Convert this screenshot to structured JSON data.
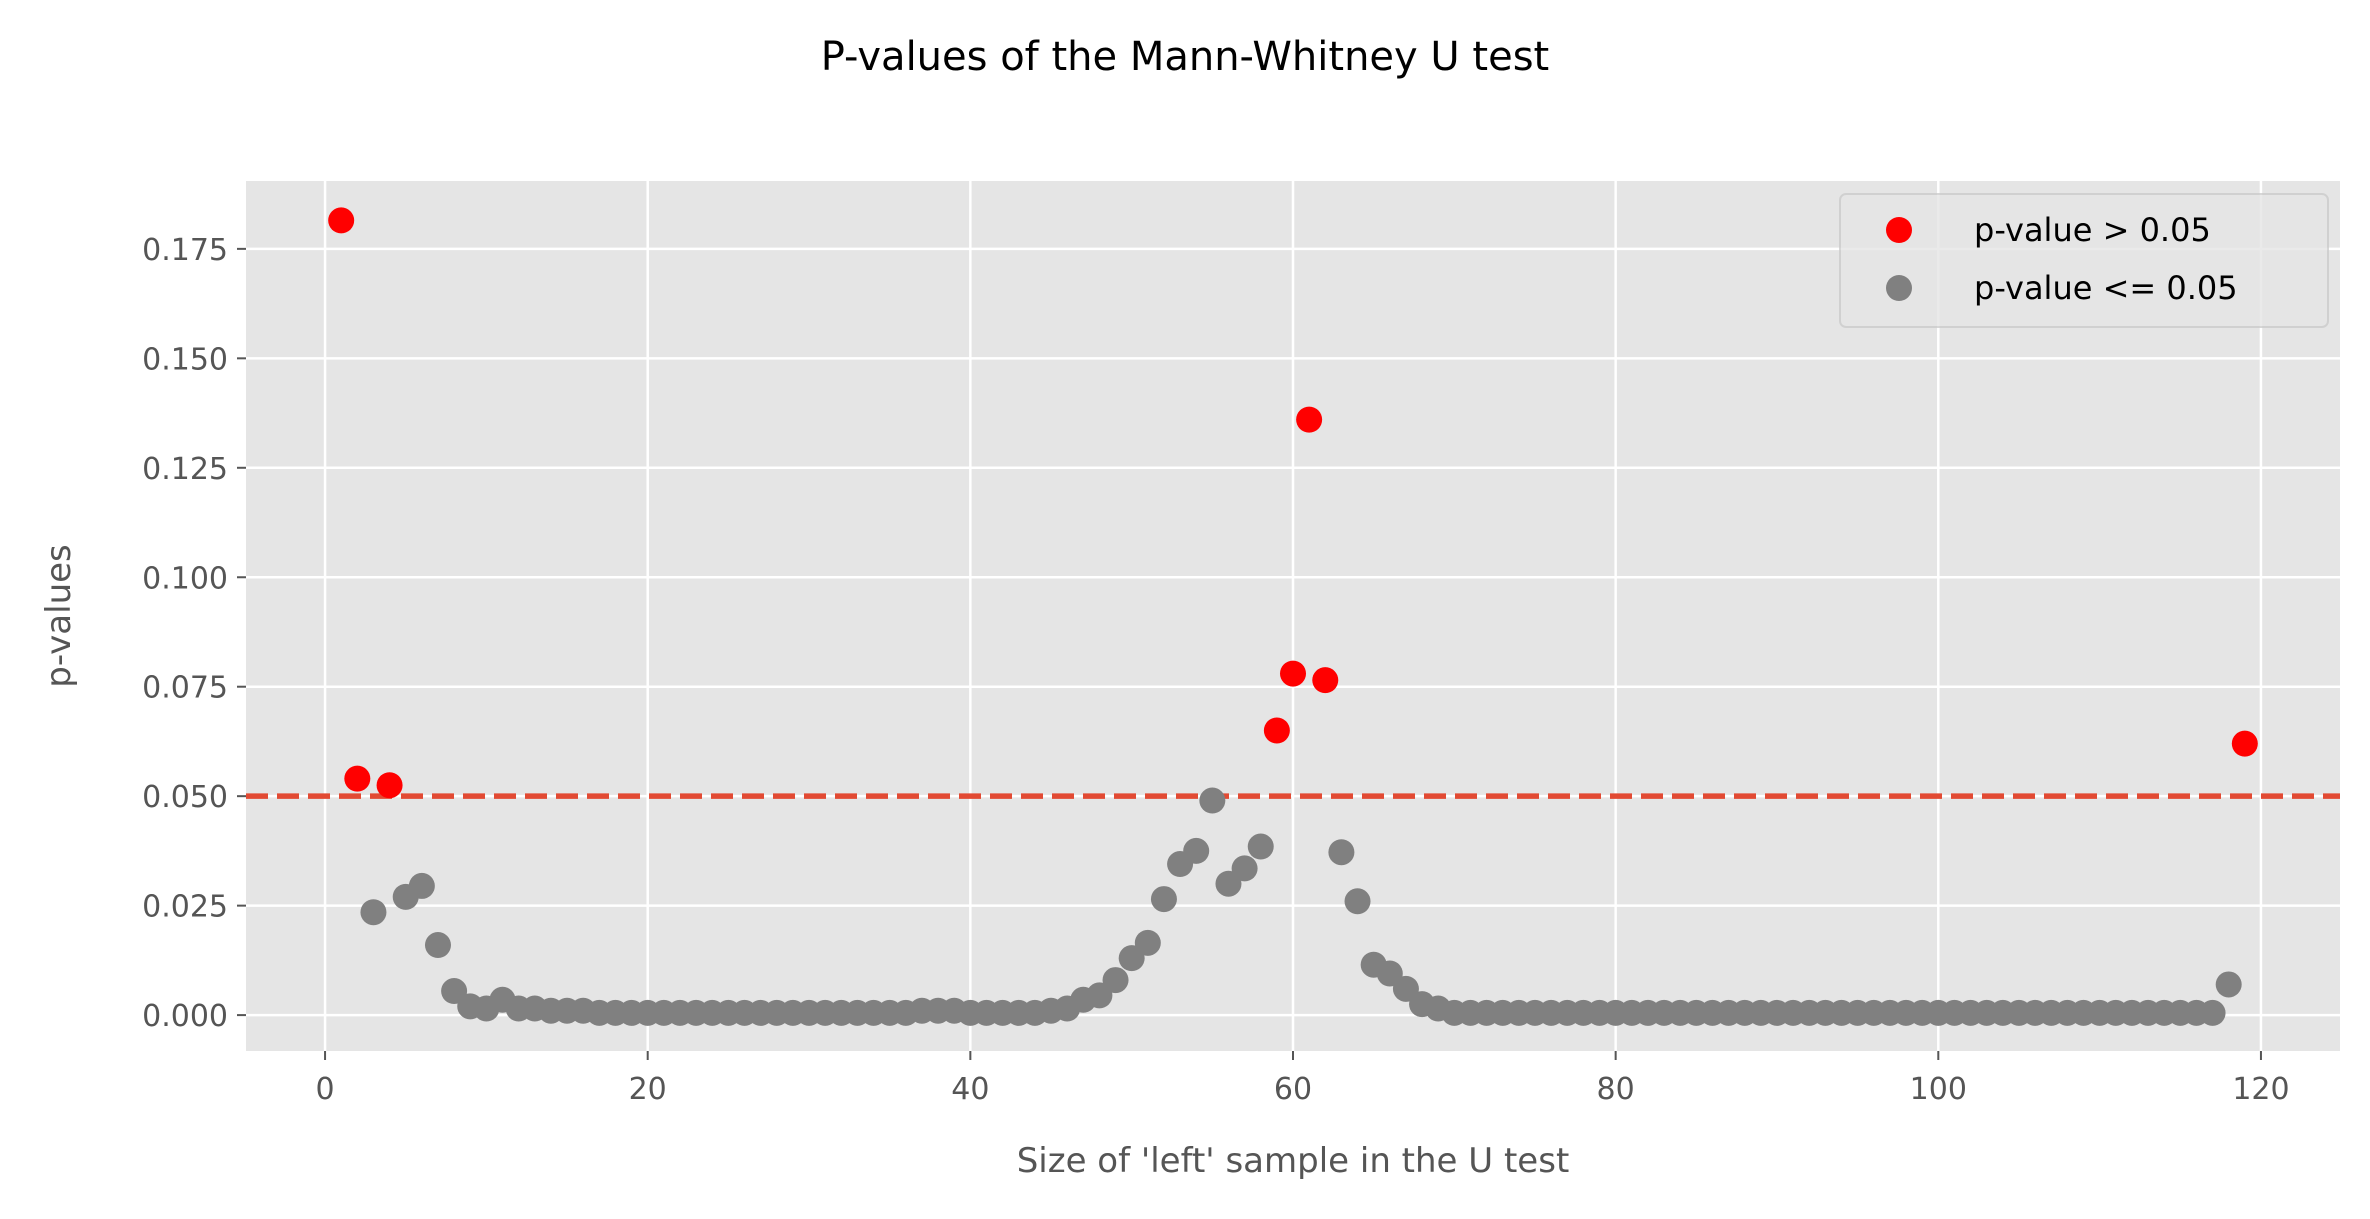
{
  "chart_data": {
    "type": "scatter",
    "title": "P-values of the Mann-Whitney U test",
    "xlabel": "Size of 'left' sample in the U test",
    "ylabel": "p-values",
    "xlim": [
      -4.9,
      124.9
    ],
    "ylim": [
      -0.0082,
      0.1905
    ],
    "xticks": [
      0,
      20,
      40,
      60,
      80,
      100,
      120
    ],
    "xtick_labels": [
      "0",
      "20",
      "40",
      "60",
      "80",
      "100",
      "120"
    ],
    "yticks": [
      0.0,
      0.025,
      0.05,
      0.075,
      0.1,
      0.125,
      0.15,
      0.175
    ],
    "ytick_labels": [
      "0.000",
      "0.025",
      "0.050",
      "0.075",
      "0.100",
      "0.125",
      "0.150",
      "0.175"
    ],
    "grid": true,
    "legend_position": "top-right",
    "threshold": {
      "y": 0.05,
      "style": "dashed",
      "color": "#E24A33"
    },
    "background_color": "#E5E5E5",
    "grid_color": "#FFFFFF",
    "series": [
      {
        "name": "p-value > 0.05",
        "color": "#FF0000",
        "x": [
          1,
          2,
          4,
          59,
          60,
          61,
          62,
          119
        ],
        "y": [
          0.1815,
          0.054,
          0.0525,
          0.065,
          0.078,
          0.136,
          0.0765,
          0.062
        ]
      },
      {
        "name": "p-value <= 0.05",
        "color": "#808080",
        "x": [
          3,
          5,
          6,
          7,
          8,
          9,
          10,
          11,
          12,
          13,
          14,
          15,
          16,
          17,
          18,
          19,
          20,
          21,
          22,
          23,
          24,
          25,
          26,
          27,
          28,
          29,
          30,
          31,
          32,
          33,
          34,
          35,
          36,
          37,
          38,
          39,
          40,
          41,
          42,
          43,
          44,
          45,
          46,
          47,
          48,
          49,
          50,
          51,
          52,
          53,
          54,
          55,
          56,
          57,
          58,
          63,
          64,
          65,
          66,
          67,
          68,
          69,
          70,
          71,
          72,
          73,
          74,
          75,
          76,
          77,
          78,
          79,
          80,
          81,
          82,
          83,
          84,
          85,
          86,
          87,
          88,
          89,
          90,
          91,
          92,
          93,
          94,
          95,
          96,
          97,
          98,
          99,
          100,
          101,
          102,
          103,
          104,
          105,
          106,
          107,
          108,
          109,
          110,
          111,
          112,
          113,
          114,
          115,
          116,
          117,
          118
        ],
        "y": [
          0.0235,
          0.027,
          0.0295,
          0.016,
          0.0055,
          0.002,
          0.0015,
          0.0035,
          0.0015,
          0.0015,
          0.001,
          0.001,
          0.001,
          0.0005,
          0.0005,
          0.0005,
          0.0005,
          0.0005,
          0.0005,
          0.0005,
          0.0005,
          0.0005,
          0.0005,
          0.0005,
          0.0005,
          0.0005,
          0.0005,
          0.0005,
          0.0005,
          0.0005,
          0.0005,
          0.0005,
          0.0005,
          0.001,
          0.001,
          0.001,
          0.0005,
          0.0005,
          0.0005,
          0.0005,
          0.0005,
          0.001,
          0.0015,
          0.0035,
          0.0045,
          0.008,
          0.013,
          0.0165,
          0.0265,
          0.0345,
          0.0375,
          0.049,
          0.03,
          0.0335,
          0.0385,
          0.0372,
          0.026,
          0.0115,
          0.0095,
          0.006,
          0.0025,
          0.0015,
          0.0005,
          0.0005,
          0.0005,
          0.0005,
          0.0005,
          0.0005,
          0.0005,
          0.0005,
          0.0005,
          0.0005,
          0.0005,
          0.0005,
          0.0005,
          0.0005,
          0.0005,
          0.0005,
          0.0005,
          0.0005,
          0.0005,
          0.0005,
          0.0005,
          0.0005,
          0.0005,
          0.0005,
          0.0005,
          0.0005,
          0.0005,
          0.0005,
          0.0005,
          0.0005,
          0.0005,
          0.0005,
          0.0005,
          0.0005,
          0.0005,
          0.0005,
          0.0005,
          0.0005,
          0.0005,
          0.0005,
          0.0005,
          0.0005,
          0.0005,
          0.0005,
          0.0005,
          0.0005,
          0.0005,
          0.0005,
          0.007
        ]
      }
    ]
  }
}
